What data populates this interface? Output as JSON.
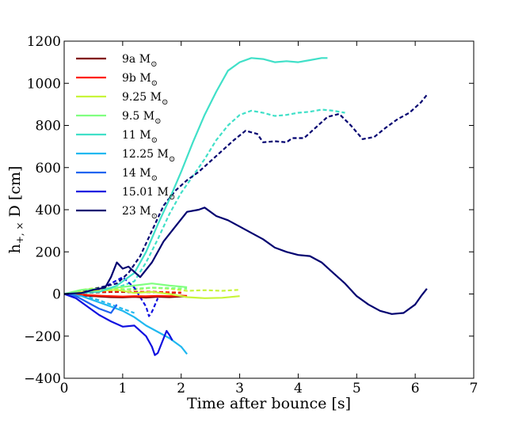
{
  "chart_data": {
    "type": "line",
    "title": "",
    "xlabel": "Time after bounce [s]",
    "ylabel": "h",
    "ylabel_sub": "+, ×",
    "ylabel_suffix": " D [cm]",
    "xlim": [
      0,
      7
    ],
    "ylim": [
      -400,
      1200
    ],
    "xticks": [
      0,
      1,
      2,
      3,
      4,
      5,
      6,
      7
    ],
    "xtick_labels": [
      "0",
      "1",
      "2",
      "3",
      "4",
      "5",
      "6",
      "7"
    ],
    "yticks": [
      -400,
      -200,
      0,
      200,
      400,
      600,
      800,
      1000,
      1200
    ],
    "ytick_labels": [
      "−400",
      "−200",
      "0",
      "200",
      "400",
      "600",
      "800",
      "1000",
      "1200"
    ],
    "legend_position": "top-left",
    "series": [
      {
        "name": "9a",
        "unit": "M",
        "unit_sub": "⊙",
        "color": "#800000",
        "plus": [
          [
            0,
            0
          ],
          [
            0.2,
            -3
          ],
          [
            0.4,
            -8
          ],
          [
            0.6,
            -12
          ],
          [
            0.8,
            -15
          ],
          [
            1.0,
            -16
          ],
          [
            1.2,
            -14
          ],
          [
            1.4,
            -17
          ],
          [
            1.6,
            -13
          ],
          [
            1.8,
            -15
          ],
          [
            2.0,
            -12
          ],
          [
            2.1,
            -14
          ]
        ],
        "cross": [
          [
            0,
            0
          ],
          [
            0.3,
            4
          ],
          [
            0.6,
            8
          ],
          [
            0.9,
            10
          ],
          [
            1.2,
            8
          ],
          [
            1.5,
            9
          ],
          [
            1.8,
            6
          ],
          [
            2.0,
            5
          ]
        ]
      },
      {
        "name": "9b",
        "unit": "M",
        "unit_sub": "⊙",
        "color": "#ff1a00",
        "plus": [
          [
            0,
            0
          ],
          [
            0.2,
            -2
          ],
          [
            0.4,
            -5
          ],
          [
            0.6,
            -8
          ],
          [
            0.8,
            -10
          ],
          [
            1.0,
            -12
          ],
          [
            1.2,
            -10
          ],
          [
            1.4,
            -11
          ],
          [
            1.6,
            -9
          ],
          [
            1.8,
            -10
          ],
          [
            2.0,
            -8
          ],
          [
            2.1,
            -9
          ]
        ],
        "cross": [
          [
            0,
            0
          ],
          [
            0.3,
            5
          ],
          [
            0.6,
            10
          ],
          [
            0.9,
            12
          ],
          [
            1.2,
            10
          ],
          [
            1.5,
            11
          ],
          [
            1.8,
            8
          ],
          [
            2.0,
            7
          ]
        ]
      },
      {
        "name": "9.25",
        "unit": "M",
        "unit_sub": "⊙",
        "color": "#c8f53a",
        "plus": [
          [
            0,
            0
          ],
          [
            0.3,
            10
          ],
          [
            0.6,
            15
          ],
          [
            0.9,
            20
          ],
          [
            1.2,
            5
          ],
          [
            1.5,
            10
          ],
          [
            1.8,
            0
          ],
          [
            2.1,
            -15
          ],
          [
            2.4,
            -20
          ],
          [
            2.7,
            -18
          ],
          [
            3.0,
            -10
          ]
        ],
        "cross": [
          [
            0,
            0
          ],
          [
            0.3,
            20
          ],
          [
            0.6,
            30
          ],
          [
            0.9,
            25
          ],
          [
            1.2,
            20
          ],
          [
            1.5,
            30
          ],
          [
            1.8,
            25
          ],
          [
            2.1,
            15
          ],
          [
            2.4,
            18
          ],
          [
            2.7,
            15
          ],
          [
            3.0,
            20
          ]
        ]
      },
      {
        "name": "9.5",
        "unit": "M",
        "unit_sub": "⊙",
        "color": "#80ff80",
        "plus": [
          [
            0,
            0
          ],
          [
            0.3,
            20
          ],
          [
            0.6,
            25
          ],
          [
            0.9,
            30
          ],
          [
            1.2,
            40
          ],
          [
            1.5,
            50
          ],
          [
            1.8,
            40
          ],
          [
            2.0,
            35
          ],
          [
            2.1,
            32
          ]
        ],
        "cross": [
          [
            0,
            0
          ],
          [
            0.3,
            15
          ],
          [
            0.6,
            20
          ],
          [
            0.9,
            18
          ],
          [
            1.2,
            25
          ],
          [
            1.5,
            30
          ],
          [
            1.8,
            28
          ],
          [
            2.1,
            25
          ]
        ]
      },
      {
        "name": "11",
        "unit": "M",
        "unit_sub": "⊙",
        "color": "#40e0c8",
        "plus": [
          [
            0,
            0
          ],
          [
            0.3,
            5
          ],
          [
            0.6,
            10
          ],
          [
            0.9,
            40
          ],
          [
            1.2,
            100
          ],
          [
            1.4,
            200
          ],
          [
            1.6,
            330
          ],
          [
            1.8,
            450
          ],
          [
            2.0,
            580
          ],
          [
            2.2,
            720
          ],
          [
            2.4,
            850
          ],
          [
            2.6,
            960
          ],
          [
            2.8,
            1060
          ],
          [
            3.0,
            1100
          ],
          [
            3.2,
            1120
          ],
          [
            3.4,
            1115
          ],
          [
            3.6,
            1100
          ],
          [
            3.8,
            1105
          ],
          [
            4.0,
            1100
          ],
          [
            4.2,
            1110
          ],
          [
            4.4,
            1120
          ],
          [
            4.5,
            1120
          ]
        ],
        "cross": [
          [
            0,
            0
          ],
          [
            0.3,
            10
          ],
          [
            0.6,
            20
          ],
          [
            0.9,
            30
          ],
          [
            1.2,
            60
          ],
          [
            1.4,
            150
          ],
          [
            1.6,
            260
          ],
          [
            1.8,
            380
          ],
          [
            2.0,
            480
          ],
          [
            2.2,
            560
          ],
          [
            2.4,
            640
          ],
          [
            2.6,
            730
          ],
          [
            2.8,
            800
          ],
          [
            3.0,
            850
          ],
          [
            3.2,
            870
          ],
          [
            3.4,
            860
          ],
          [
            3.6,
            845
          ],
          [
            3.8,
            850
          ],
          [
            4.0,
            860
          ],
          [
            4.2,
            865
          ],
          [
            4.4,
            875
          ],
          [
            4.6,
            870
          ],
          [
            4.8,
            860
          ]
        ]
      },
      {
        "name": "12.25",
        "unit": "M",
        "unit_sub": "⊙",
        "color": "#20b8f0",
        "plus": [
          [
            0,
            0
          ],
          [
            0.3,
            -10
          ],
          [
            0.6,
            -40
          ],
          [
            0.9,
            -70
          ],
          [
            1.0,
            -80
          ],
          [
            1.2,
            -110
          ],
          [
            1.4,
            -150
          ],
          [
            1.6,
            -180
          ],
          [
            1.8,
            -210
          ],
          [
            2.0,
            -250
          ],
          [
            2.1,
            -285
          ]
        ],
        "cross": [
          [
            0,
            0
          ],
          [
            0.3,
            -5
          ],
          [
            0.6,
            -30
          ],
          [
            0.9,
            -60
          ],
          [
            1.2,
            -90
          ]
        ]
      },
      {
        "name": "14",
        "unit": "M",
        "unit_sub": "⊙",
        "color": "#1e64f0",
        "plus": [
          [
            0,
            0
          ],
          [
            0.2,
            -10
          ],
          [
            0.4,
            -40
          ],
          [
            0.6,
            -70
          ],
          [
            0.8,
            -90
          ],
          [
            0.9,
            -50
          ]
        ],
        "cross": [
          [
            0,
            0
          ],
          [
            0.3,
            5
          ],
          [
            0.6,
            10
          ]
        ]
      },
      {
        "name": "15.01",
        "unit": "M",
        "unit_sub": "⊙",
        "color": "#1010e0",
        "plus": [
          [
            0,
            0
          ],
          [
            0.2,
            -20
          ],
          [
            0.4,
            -60
          ],
          [
            0.6,
            -100
          ],
          [
            0.8,
            -130
          ],
          [
            1.0,
            -155
          ],
          [
            1.2,
            -150
          ],
          [
            1.4,
            -200
          ],
          [
            1.5,
            -250
          ],
          [
            1.55,
            -290
          ],
          [
            1.6,
            -280
          ],
          [
            1.7,
            -210
          ],
          [
            1.75,
            -175
          ],
          [
            1.8,
            -195
          ],
          [
            1.85,
            -220
          ]
        ],
        "cross": [
          [
            0,
            0
          ],
          [
            0.3,
            10
          ],
          [
            0.6,
            20
          ],
          [
            0.8,
            50
          ],
          [
            1.0,
            80
          ],
          [
            1.2,
            30
          ],
          [
            1.4,
            -60
          ],
          [
            1.45,
            -105
          ],
          [
            1.5,
            -85
          ],
          [
            1.6,
            -20
          ]
        ]
      },
      {
        "name": "23",
        "unit": "M",
        "unit_sub": "⊙",
        "color": "#000070",
        "plus": [
          [
            0,
            0
          ],
          [
            0.3,
            5
          ],
          [
            0.5,
            20
          ],
          [
            0.7,
            30
          ],
          [
            0.8,
            80
          ],
          [
            0.9,
            150
          ],
          [
            1.0,
            120
          ],
          [
            1.1,
            130
          ],
          [
            1.3,
            80
          ],
          [
            1.5,
            150
          ],
          [
            1.7,
            250
          ],
          [
            1.9,
            320
          ],
          [
            2.1,
            390
          ],
          [
            2.3,
            400
          ],
          [
            2.4,
            410
          ],
          [
            2.6,
            370
          ],
          [
            2.8,
            350
          ],
          [
            3.0,
            320
          ],
          [
            3.2,
            290
          ],
          [
            3.4,
            260
          ],
          [
            3.6,
            220
          ],
          [
            3.8,
            200
          ],
          [
            4.0,
            185
          ],
          [
            4.2,
            180
          ],
          [
            4.4,
            150
          ],
          [
            4.6,
            100
          ],
          [
            4.8,
            50
          ],
          [
            5.0,
            -10
          ],
          [
            5.2,
            -50
          ],
          [
            5.4,
            -80
          ],
          [
            5.6,
            -95
          ],
          [
            5.8,
            -90
          ],
          [
            6.0,
            -50
          ],
          [
            6.1,
            -10
          ],
          [
            6.2,
            25
          ]
        ],
        "cross": [
          [
            0,
            0
          ],
          [
            0.3,
            10
          ],
          [
            0.6,
            30
          ],
          [
            0.9,
            50
          ],
          [
            1.1,
            100
          ],
          [
            1.3,
            180
          ],
          [
            1.5,
            300
          ],
          [
            1.7,
            420
          ],
          [
            1.9,
            490
          ],
          [
            2.1,
            540
          ],
          [
            2.3,
            580
          ],
          [
            2.5,
            630
          ],
          [
            2.7,
            680
          ],
          [
            2.9,
            730
          ],
          [
            3.1,
            775
          ],
          [
            3.3,
            760
          ],
          [
            3.4,
            720
          ],
          [
            3.6,
            725
          ],
          [
            3.8,
            720
          ],
          [
            3.9,
            740
          ],
          [
            4.1,
            740
          ],
          [
            4.3,
            790
          ],
          [
            4.5,
            840
          ],
          [
            4.7,
            855
          ],
          [
            4.9,
            800
          ],
          [
            5.1,
            735
          ],
          [
            5.3,
            745
          ],
          [
            5.5,
            790
          ],
          [
            5.7,
            830
          ],
          [
            5.9,
            860
          ],
          [
            6.1,
            910
          ],
          [
            6.2,
            945
          ]
        ]
      }
    ]
  }
}
